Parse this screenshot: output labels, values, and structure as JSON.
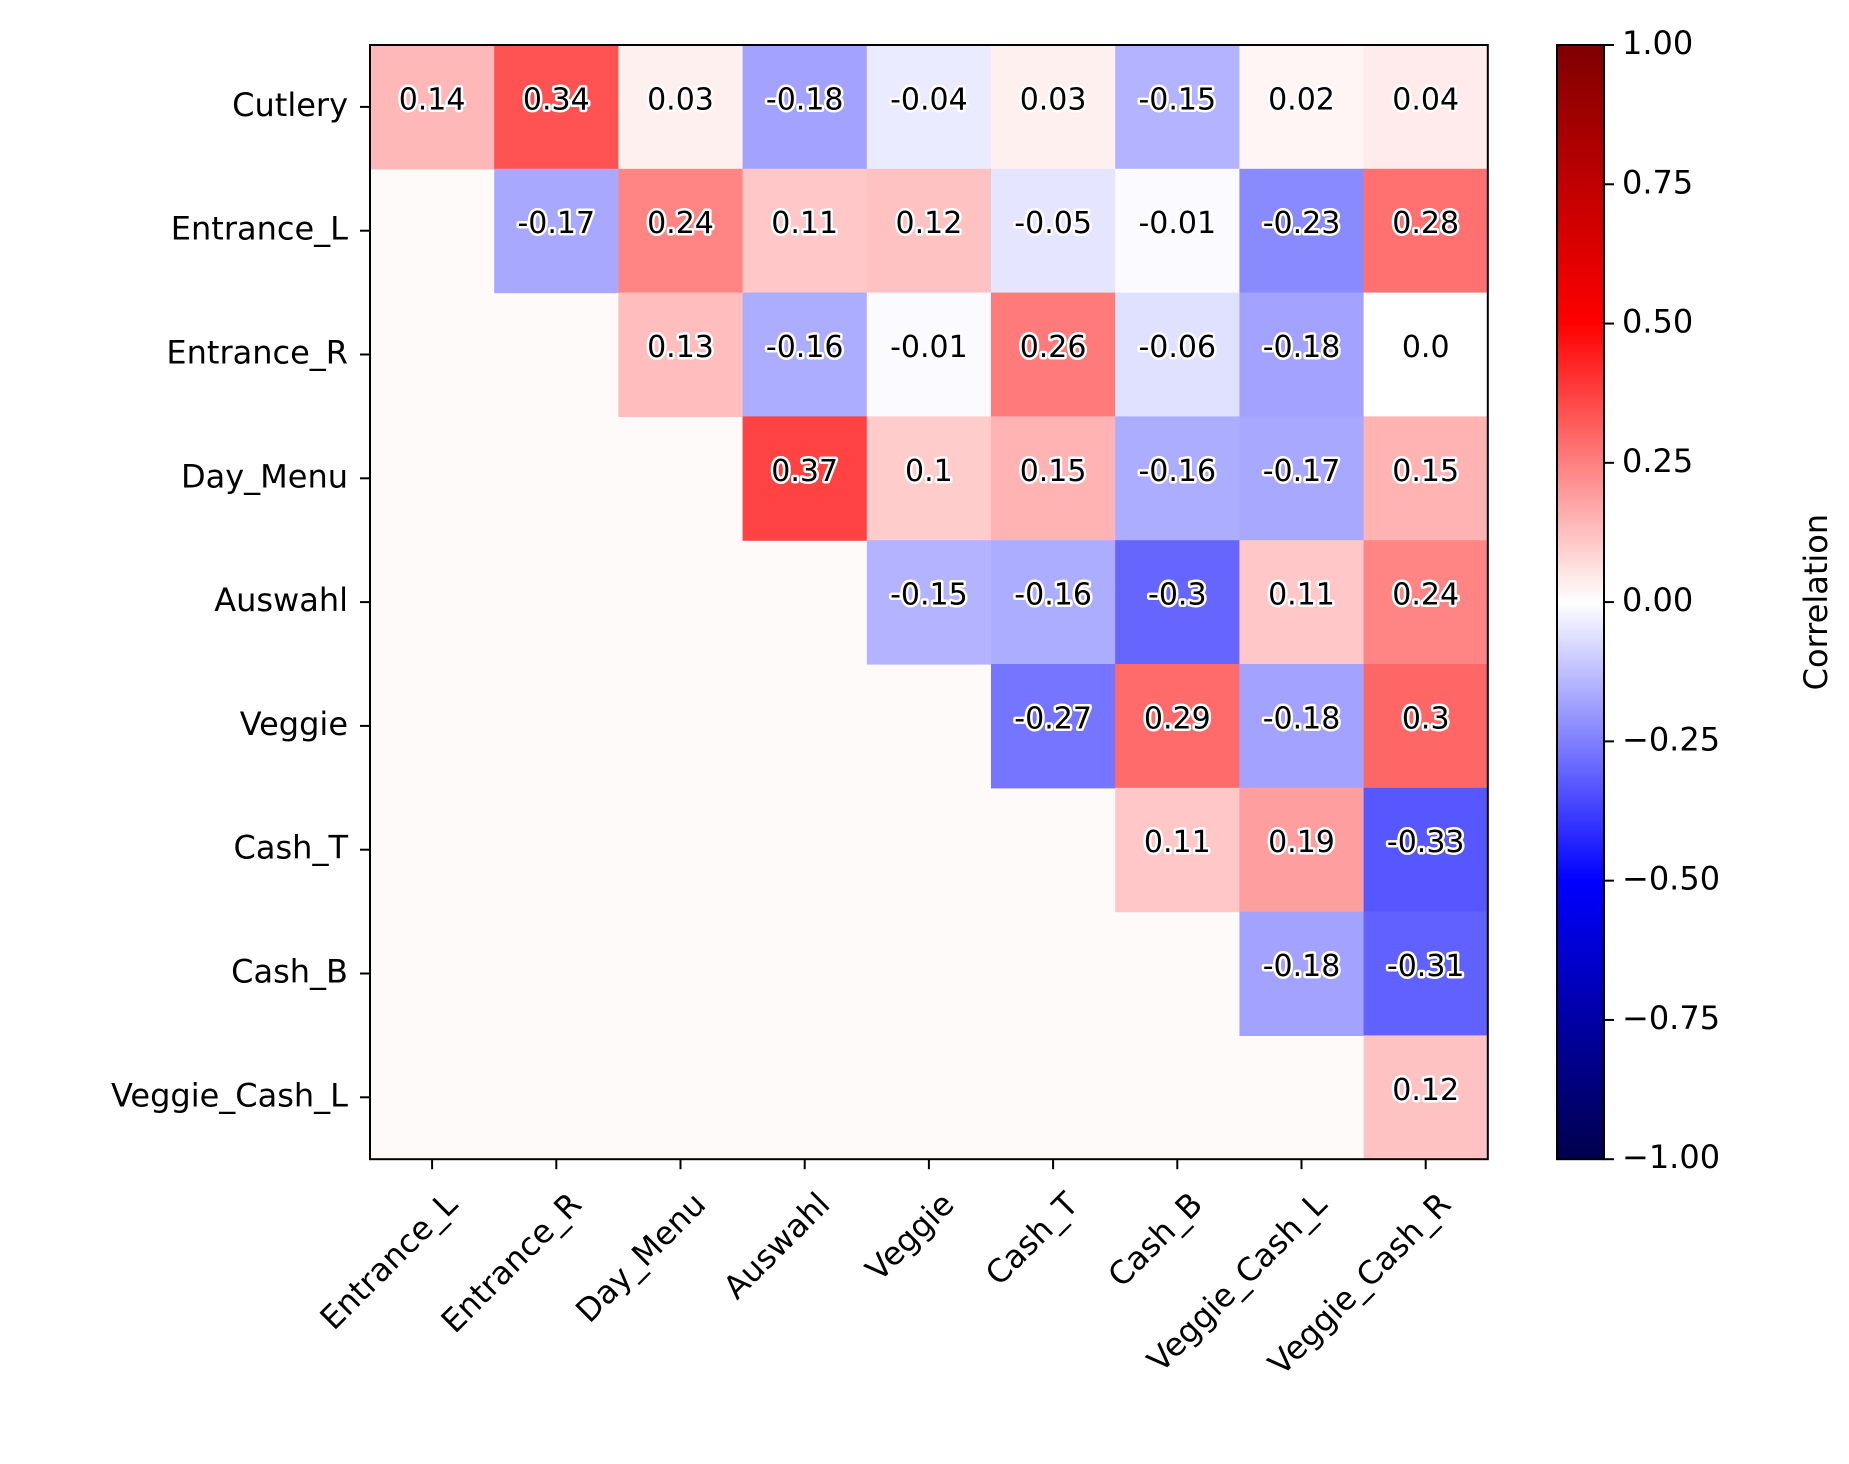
{
  "chart_data": {
    "type": "heatmap",
    "rows": [
      "Cutlery",
      "Entrance_L",
      "Entrance_R",
      "Day_Menu",
      "Auswahl",
      "Veggie",
      "Cash_T",
      "Cash_B",
      "Veggie_Cash_L"
    ],
    "columns": [
      "Entrance_L",
      "Entrance_R",
      "Day_Menu",
      "Auswahl",
      "Veggie",
      "Cash_T",
      "Cash_B",
      "Veggie_Cash_L",
      "Veggie_Cash_R"
    ],
    "values": [
      [
        0.14,
        0.34,
        0.03,
        -0.18,
        -0.04,
        0.03,
        -0.15,
        0.02,
        0.04
      ],
      [
        null,
        -0.17,
        0.24,
        0.11,
        0.12,
        -0.05,
        -0.01,
        -0.23,
        0.28
      ],
      [
        null,
        null,
        0.13,
        -0.16,
        -0.01,
        0.26,
        -0.06,
        -0.18,
        0.0
      ],
      [
        null,
        null,
        null,
        0.37,
        0.1,
        0.15,
        -0.16,
        -0.17,
        0.15
      ],
      [
        null,
        null,
        null,
        null,
        -0.15,
        -0.16,
        -0.3,
        0.11,
        0.24
      ],
      [
        null,
        null,
        null,
        null,
        null,
        -0.27,
        0.29,
        -0.18,
        0.3
      ],
      [
        null,
        null,
        null,
        null,
        null,
        null,
        0.11,
        0.19,
        -0.33
      ],
      [
        null,
        null,
        null,
        null,
        null,
        null,
        null,
        -0.18,
        -0.31
      ],
      [
        null,
        null,
        null,
        null,
        null,
        null,
        null,
        null,
        0.12
      ]
    ],
    "value_labels": [
      [
        "0.14",
        "0.34",
        "0.03",
        "-0.18",
        "-0.04",
        "0.03",
        "-0.15",
        "0.02",
        "0.04"
      ],
      [
        "",
        "-0.17",
        "0.24",
        "0.11",
        "0.12",
        "-0.05",
        "-0.01",
        "-0.23",
        "0.28"
      ],
      [
        "",
        "",
        "0.13",
        "-0.16",
        "-0.01",
        "0.26",
        "-0.06",
        "-0.18",
        "0.0"
      ],
      [
        "",
        "",
        "",
        "0.37",
        "0.1",
        "0.15",
        "-0.16",
        "-0.17",
        "0.15"
      ],
      [
        "",
        "",
        "",
        "",
        "-0.15",
        "-0.16",
        "-0.3",
        "0.11",
        "0.24"
      ],
      [
        "",
        "",
        "",
        "",
        "",
        "-0.27",
        "0.29",
        "-0.18",
        "0.3"
      ],
      [
        "",
        "",
        "",
        "",
        "",
        "",
        "0.11",
        "0.19",
        "-0.33"
      ],
      [
        "",
        "",
        "",
        "",
        "",
        "",
        "",
        "-0.18",
        "-0.31"
      ],
      [
        "",
        "",
        "",
        "",
        "",
        "",
        "",
        "",
        "0.12"
      ]
    ],
    "colorscale": "seismic",
    "vmin": -1.0,
    "vmax": 1.0,
    "colorbar": {
      "label": "Correlation",
      "ticks": [
        1.0,
        0.75,
        0.5,
        0.25,
        0.0,
        -0.25,
        -0.5,
        -0.75,
        -1.0
      ],
      "tick_labels": [
        "1.00",
        "0.75",
        "0.50",
        "0.25",
        "0.00",
        "−0.25",
        "−0.50",
        "−0.75",
        "−1.00"
      ]
    },
    "title": "",
    "xlabel": "",
    "ylabel": ""
  }
}
